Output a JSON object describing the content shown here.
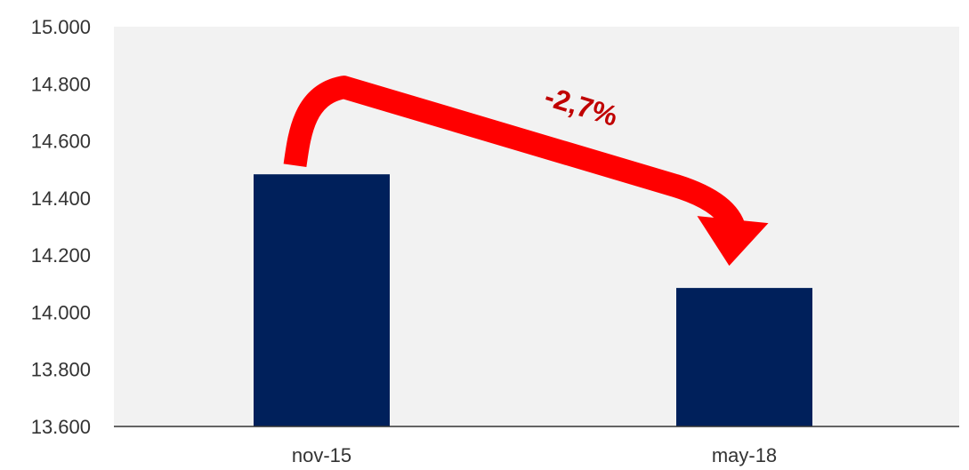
{
  "chart_data": {
    "type": "bar",
    "title": "",
    "xlabel": "",
    "ylabel": "",
    "categories": [
      "nov-15",
      "may-18"
    ],
    "values": [
      14483,
      14085
    ],
    "ylim": [
      13600,
      15000
    ],
    "yticks": [
      13600,
      13800,
      14000,
      14200,
      14400,
      14600,
      14800,
      15000
    ],
    "ytick_labels": [
      "13.600",
      "13.800",
      "14.000",
      "14.200",
      "14.400",
      "14.600",
      "14.800",
      "15.000"
    ],
    "grid": false,
    "legend": "none",
    "annotation": {
      "text": "-2,7%",
      "arrow": "from nov-15 bar top to may-18 bar top"
    }
  },
  "colors": {
    "bar": "#00205b",
    "plot_background": "#f2f2f2",
    "arrow": "#ff0000",
    "annotation_text": "#c00000",
    "axis_line": "#333333"
  }
}
